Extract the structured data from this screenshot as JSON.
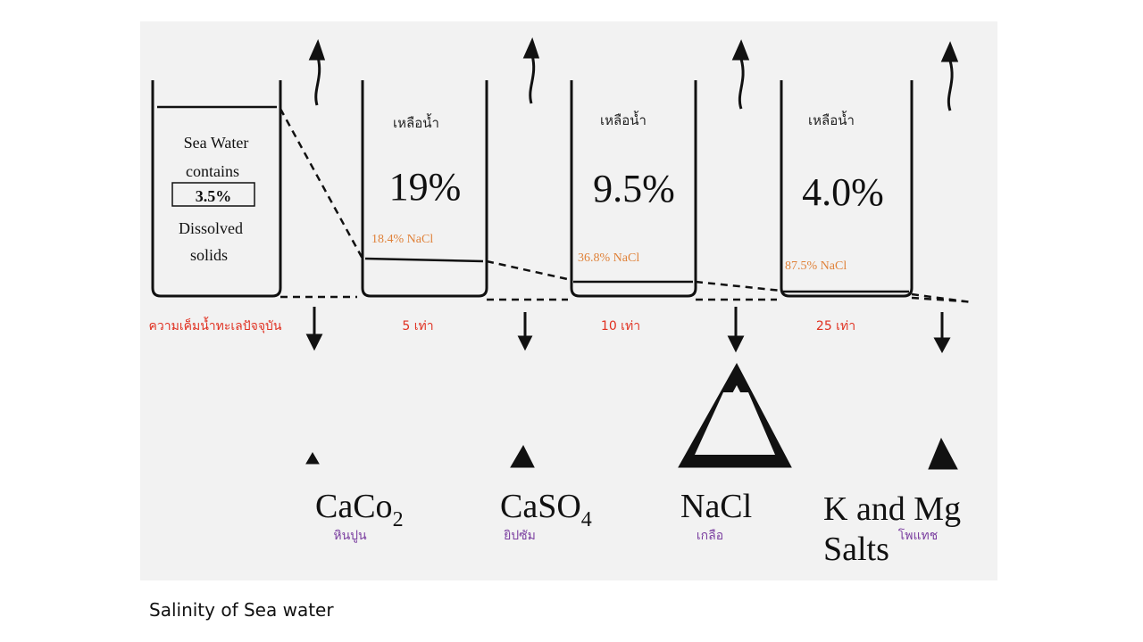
{
  "caption": "Salinity of Sea water",
  "sea_water": {
    "line1": "Sea Water",
    "line2": "contains",
    "percent": "3.5%",
    "line3": "Dissolved",
    "line4": "solids"
  },
  "remaining_label": "เหลือน้ำ",
  "stages": [
    {
      "volume_percent": "19%",
      "nacl": "18.4% NaCl",
      "factor": "5 เท่า"
    },
    {
      "volume_percent": "9.5%",
      "nacl": "36.8% NaCl",
      "factor": "10 เท่า"
    },
    {
      "volume_percent": "4.0%",
      "nacl": "87.5% NaCl",
      "factor": "25 เท่า"
    }
  ],
  "current_salinity_label": "ความเค็มน้ำทะเลปัจจุบัน",
  "precipitates": [
    {
      "formula_main": "CaCo",
      "formula_sub": "2",
      "thai": "หินปูน"
    },
    {
      "formula_main": "CaSO",
      "formula_sub": "4",
      "thai": "ยิปซัม"
    },
    {
      "formula_main": "NaCl",
      "formula_sub": "",
      "thai": "เกลือ"
    },
    {
      "formula_main": "K and Mg",
      "formula_line2": "Salts",
      "formula_sub": "",
      "thai": "โพแทช"
    }
  ],
  "colors": {
    "orange": "#E0823A",
    "red": "#E03020",
    "purple": "#7B3FA0",
    "ink": "#111111",
    "paper": "#f2f2f2"
  }
}
